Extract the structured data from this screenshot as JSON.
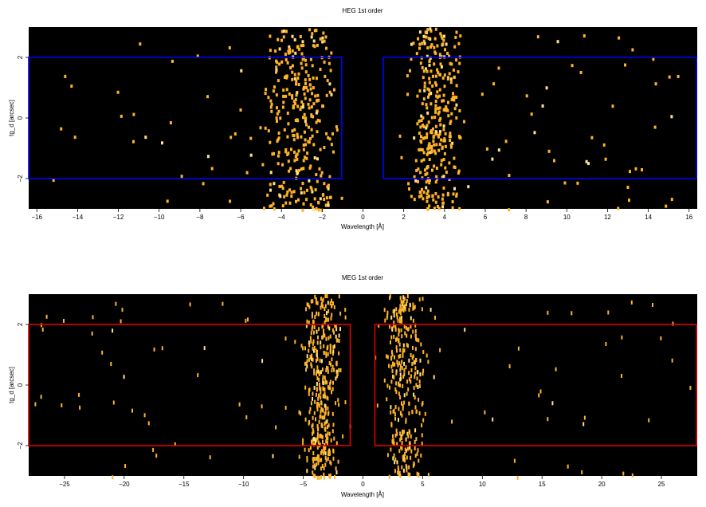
{
  "chart_data": [
    {
      "type": "heatmap",
      "title": "HEG 1st order",
      "xlabel": "Wavelength [Å]",
      "ylabel": "tg_d [arcsec]",
      "xlim": [
        -16.4,
        16.4
      ],
      "ylim": [
        -3.0,
        3.0
      ],
      "xticks": [
        -16,
        -14,
        -12,
        -10,
        -8,
        -6,
        -4,
        -2,
        0,
        2,
        4,
        6,
        8,
        10,
        12,
        14,
        16
      ],
      "yticks": [
        -2,
        0,
        2
      ],
      "background": "#000000",
      "event_color": "#ffb428",
      "event_color_bright": "#ffe38a",
      "regions": [
        {
          "x": [
            -16.4,
            -1.0
          ],
          "y": [
            -2.0,
            2.0
          ],
          "color": "#0000ff"
        },
        {
          "x": [
            1.0,
            16.4
          ],
          "y": [
            -2.0,
            2.0
          ],
          "color": "#0000ff"
        }
      ],
      "event_clusters": [
        {
          "center": -3.2,
          "sigma": 1.6
        },
        {
          "center": 3.6,
          "sigma": 1.1
        }
      ]
    },
    {
      "type": "heatmap",
      "title": "MEG 1st order",
      "xlabel": "Wavelength [Å]",
      "ylabel": "tg_d [arcsec]",
      "xlim": [
        -28,
        28
      ],
      "ylim": [
        -3.0,
        3.0
      ],
      "xticks": [
        -25,
        -20,
        -15,
        -10,
        -5,
        0,
        5,
        10,
        15,
        20,
        25
      ],
      "yticks": [
        -2,
        0,
        2
      ],
      "background": "#000000",
      "event_color": "#ffb428",
      "event_color_bright": "#ffe38a",
      "regions": [
        {
          "x": [
            -28,
            -1.0
          ],
          "y": [
            -2.0,
            2.0
          ],
          "color": "#e00000"
        },
        {
          "x": [
            1.0,
            28
          ],
          "y": [
            -2.0,
            2.0
          ],
          "color": "#e00000"
        }
      ],
      "event_clusters": [
        {
          "center": -3.5,
          "sigma": 1.4
        },
        {
          "center": 3.4,
          "sigma": 1.6
        }
      ]
    }
  ]
}
